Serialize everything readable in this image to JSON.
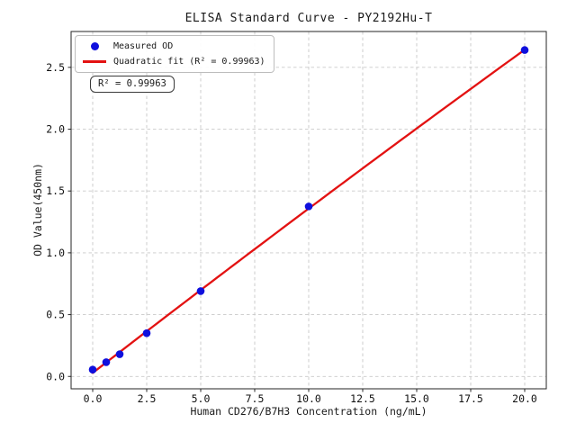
{
  "figure": {
    "title": "ELISA Standard Curve - PY2192Hu-T",
    "xlabel": "Human CD276/B7H3 Concentration (ng/mL)",
    "ylabel": "OD Value(450nm)",
    "annotation": "R² = 0.99963",
    "legend": {
      "items": [
        {
          "label": "Measured OD",
          "marker": "dot",
          "color": "#0f0fdd"
        },
        {
          "label": "Quadratic fit (R² = 0.99963)",
          "marker": "line",
          "color": "#e31212"
        }
      ]
    }
  },
  "chart_data": {
    "type": "scatter",
    "title": "ELISA Standard Curve - PY2192Hu-T",
    "xlabel": "Human CD276/B7H3 Concentration (ng/mL)",
    "ylabel": "OD Value(450nm)",
    "xlim": [
      -1,
      21
    ],
    "ylim": [
      -0.1,
      2.79
    ],
    "grid": true,
    "legend_position": "upper left",
    "x_ticks": [
      "0.0",
      "2.5",
      "5.0",
      "7.5",
      "10.0",
      "12.5",
      "15.0",
      "17.5",
      "20.0"
    ],
    "x_tick_values": [
      0,
      2.5,
      5,
      7.5,
      10,
      12.5,
      15,
      17.5,
      20
    ],
    "y_ticks": [
      "0.0",
      "0.5",
      "1.0",
      "1.5",
      "2.0",
      "2.5"
    ],
    "y_tick_values": [
      0,
      0.5,
      1,
      1.5,
      2,
      2.5
    ],
    "series": [
      {
        "name": "Measured OD",
        "type": "scatter",
        "color": "#0f0fdd",
        "points": [
          [
            0,
            0.055
          ],
          [
            0.625,
            0.115
          ],
          [
            1.25,
            0.18
          ],
          [
            2.5,
            0.35
          ],
          [
            5,
            0.69
          ],
          [
            10,
            1.375
          ],
          [
            20,
            2.64
          ]
        ]
      },
      {
        "name": "Quadratic fit",
        "type": "line",
        "color": "#e31212",
        "r_squared": 0.99963,
        "fit_coefficients": {
          "a": -0.00022,
          "b": 0.1351,
          "c": 0.0288
        },
        "x_range": [
          0,
          20
        ]
      }
    ],
    "axis_color": "#262626",
    "grid_color": "#c9c9c9"
  }
}
